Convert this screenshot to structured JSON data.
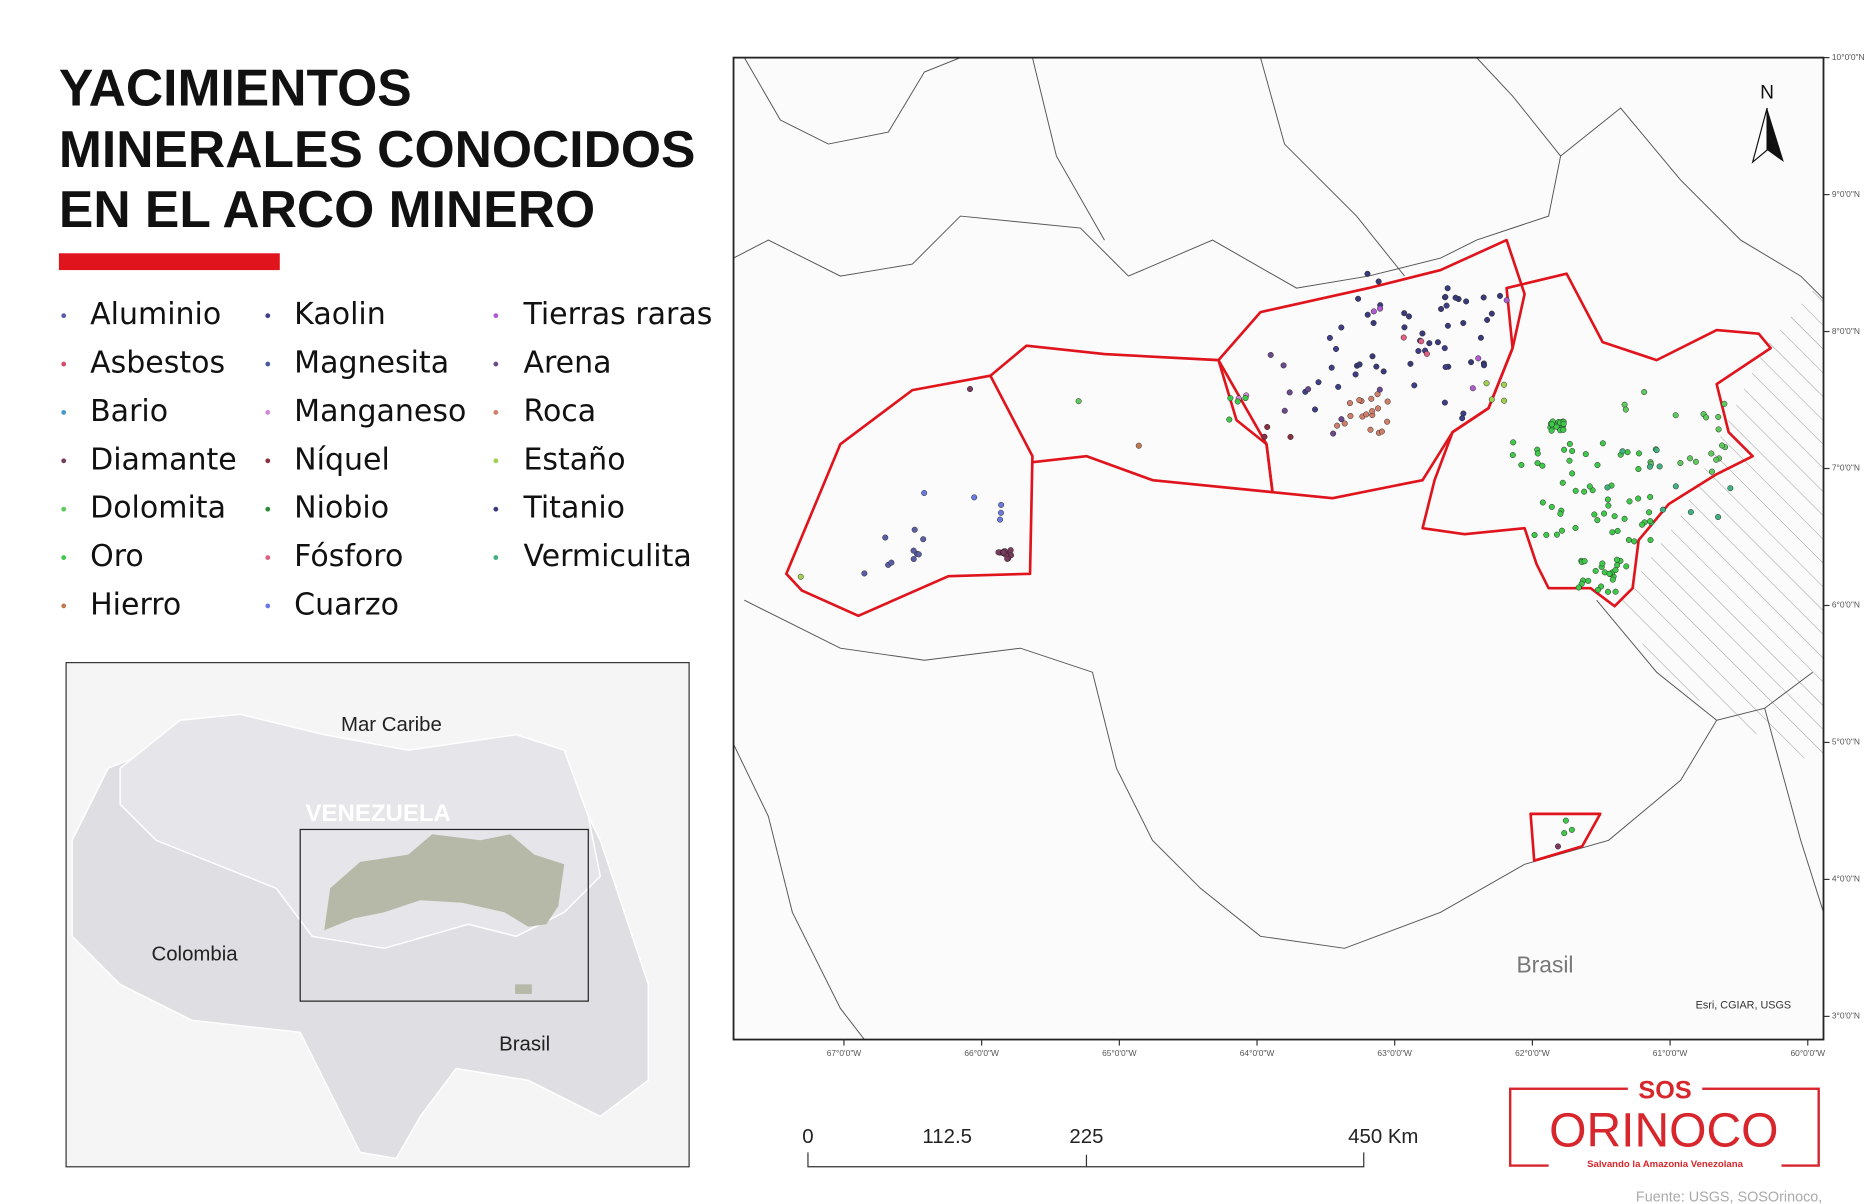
{
  "title": {
    "lines": [
      "YACIMIENTOS",
      "MINERALES CONOCIDOS",
      "EN EL ARCO MINERO"
    ]
  },
  "legend": {
    "items": [
      {
        "name": "Aluminio",
        "color": "#5b5ea6"
      },
      {
        "name": "Asbestos",
        "color": "#d94a6a"
      },
      {
        "name": "Bario",
        "color": "#4a9ac9"
      },
      {
        "name": "Diamante",
        "color": "#7a3b5e"
      },
      {
        "name": "Dolomita",
        "color": "#5fc85f"
      },
      {
        "name": "Oro",
        "color": "#3fc84a"
      },
      {
        "name": "Hierro",
        "color": "#c07a50"
      },
      {
        "name": "Kaolin",
        "color": "#3e3e86"
      },
      {
        "name": "Magnesita",
        "color": "#4a5a9a"
      },
      {
        "name": "Manganeso",
        "color": "#d08ad0"
      },
      {
        "name": "Níquel",
        "color": "#8a3040"
      },
      {
        "name": "Niobio",
        "color": "#2e8b3e"
      },
      {
        "name": "Fósforo",
        "color": "#e06080"
      },
      {
        "name": "Cuarzo",
        "color": "#6a7ae0"
      },
      {
        "name": "Tierras raras",
        "color": "#b05ad0"
      },
      {
        "name": "Arena",
        "color": "#6a4a8a"
      },
      {
        "name": "Roca",
        "color": "#d0806a"
      },
      {
        "name": "Estaño",
        "color": "#a0d050"
      },
      {
        "name": "Titanio",
        "color": "#3a3a7a"
      },
      {
        "name": "Vermiculita",
        "color": "#40b080"
      }
    ]
  },
  "inset": {
    "sea": "Mar Caribe",
    "country": "VENEZUELA",
    "west": "Colombia",
    "south": "Brasil"
  },
  "map": {
    "north": "N",
    "brazil": "Brasil",
    "credit": "Esri, CGIAR, USGS",
    "lat_labels": [
      "10°0'0\"N",
      "9°0'0\"N",
      "8°0'0\"N",
      "7°0'0\"N",
      "6°0'0\"N",
      "5°0'0\"N",
      "4°0'0\"N",
      "3°0'0\"N"
    ],
    "lon_labels": [
      "67°0'0\"W",
      "66°0'0\"W",
      "65°0'0\"W",
      "64°0'0\"W",
      "63°0'0\"W",
      "62°0'0\"W",
      "61°0'0\"W",
      "60°0'0\"W"
    ]
  },
  "scale_bar": {
    "labels": [
      "0",
      "112.5",
      "225",
      "450 Km"
    ]
  },
  "logo": {
    "top": "SOS",
    "main": "ORINOCO",
    "tagline": "Salvando la Amazonia Venezolana"
  },
  "source": "Fuente: USGS, SOSOrinoco,"
}
